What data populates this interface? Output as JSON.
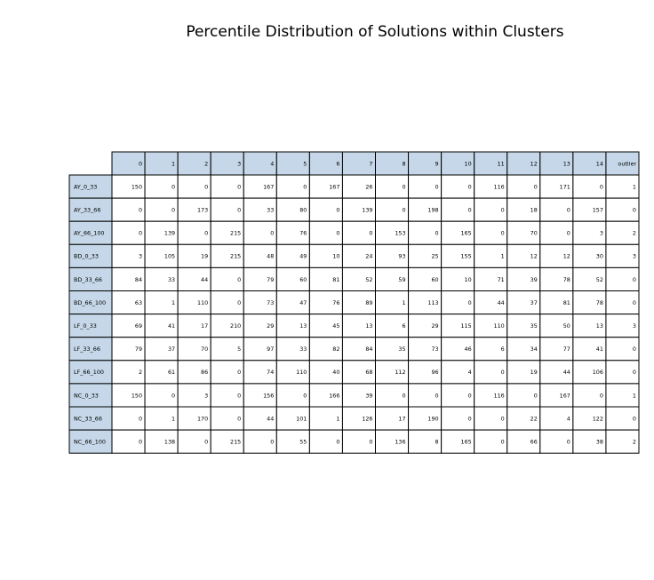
{
  "chart_data": {
    "type": "table",
    "title": "Percentile Distribution of Solutions within Clusters",
    "columns": [
      "0",
      "1",
      "2",
      "3",
      "4",
      "5",
      "6",
      "7",
      "8",
      "9",
      "10",
      "11",
      "12",
      "13",
      "14",
      "outlier"
    ],
    "rows": [
      {
        "label": "AY_0_33",
        "values": [
          150,
          0,
          0,
          0,
          167,
          0,
          167,
          26,
          0,
          0,
          0,
          116,
          0,
          171,
          0,
          1
        ]
      },
      {
        "label": "AY_33_66",
        "values": [
          0,
          0,
          173,
          0,
          33,
          80,
          0,
          139,
          0,
          198,
          0,
          0,
          18,
          0,
          157,
          0
        ]
      },
      {
        "label": "AY_66_100",
        "values": [
          0,
          139,
          0,
          215,
          0,
          76,
          0,
          0,
          153,
          0,
          165,
          0,
          70,
          0,
          3,
          2
        ]
      },
      {
        "label": "BD_0_33",
        "values": [
          3,
          105,
          19,
          215,
          48,
          49,
          10,
          24,
          93,
          25,
          155,
          1,
          12,
          12,
          30,
          3
        ]
      },
      {
        "label": "BD_33_66",
        "values": [
          84,
          33,
          44,
          0,
          79,
          60,
          81,
          52,
          59,
          60,
          10,
          71,
          39,
          78,
          52,
          0
        ]
      },
      {
        "label": "BD_66_100",
        "values": [
          63,
          1,
          110,
          0,
          73,
          47,
          76,
          89,
          1,
          113,
          0,
          44,
          37,
          81,
          78,
          0
        ]
      },
      {
        "label": "LF_0_33",
        "values": [
          69,
          41,
          17,
          210,
          29,
          13,
          45,
          13,
          6,
          29,
          115,
          110,
          35,
          50,
          13,
          3
        ]
      },
      {
        "label": "LF_33_66",
        "values": [
          79,
          37,
          70,
          5,
          97,
          33,
          82,
          84,
          35,
          73,
          46,
          6,
          34,
          77,
          41,
          0
        ]
      },
      {
        "label": "LF_66_100",
        "values": [
          2,
          61,
          86,
          0,
          74,
          110,
          40,
          68,
          112,
          96,
          4,
          0,
          19,
          44,
          106,
          0
        ]
      },
      {
        "label": "NC_0_33",
        "values": [
          150,
          0,
          3,
          0,
          156,
          0,
          166,
          39,
          0,
          0,
          0,
          116,
          0,
          167,
          0,
          1
        ]
      },
      {
        "label": "NC_33_66",
        "values": [
          0,
          1,
          170,
          0,
          44,
          101,
          1,
          126,
          17,
          190,
          0,
          0,
          22,
          4,
          122,
          0
        ]
      },
      {
        "label": "NC_66_100",
        "values": [
          0,
          138,
          0,
          215,
          0,
          55,
          0,
          0,
          136,
          8,
          165,
          0,
          66,
          0,
          38,
          2
        ]
      }
    ],
    "colors": {
      "header_fill": "#c5d7e8",
      "cell_fill": "#ffffff",
      "border": "#000000"
    }
  }
}
